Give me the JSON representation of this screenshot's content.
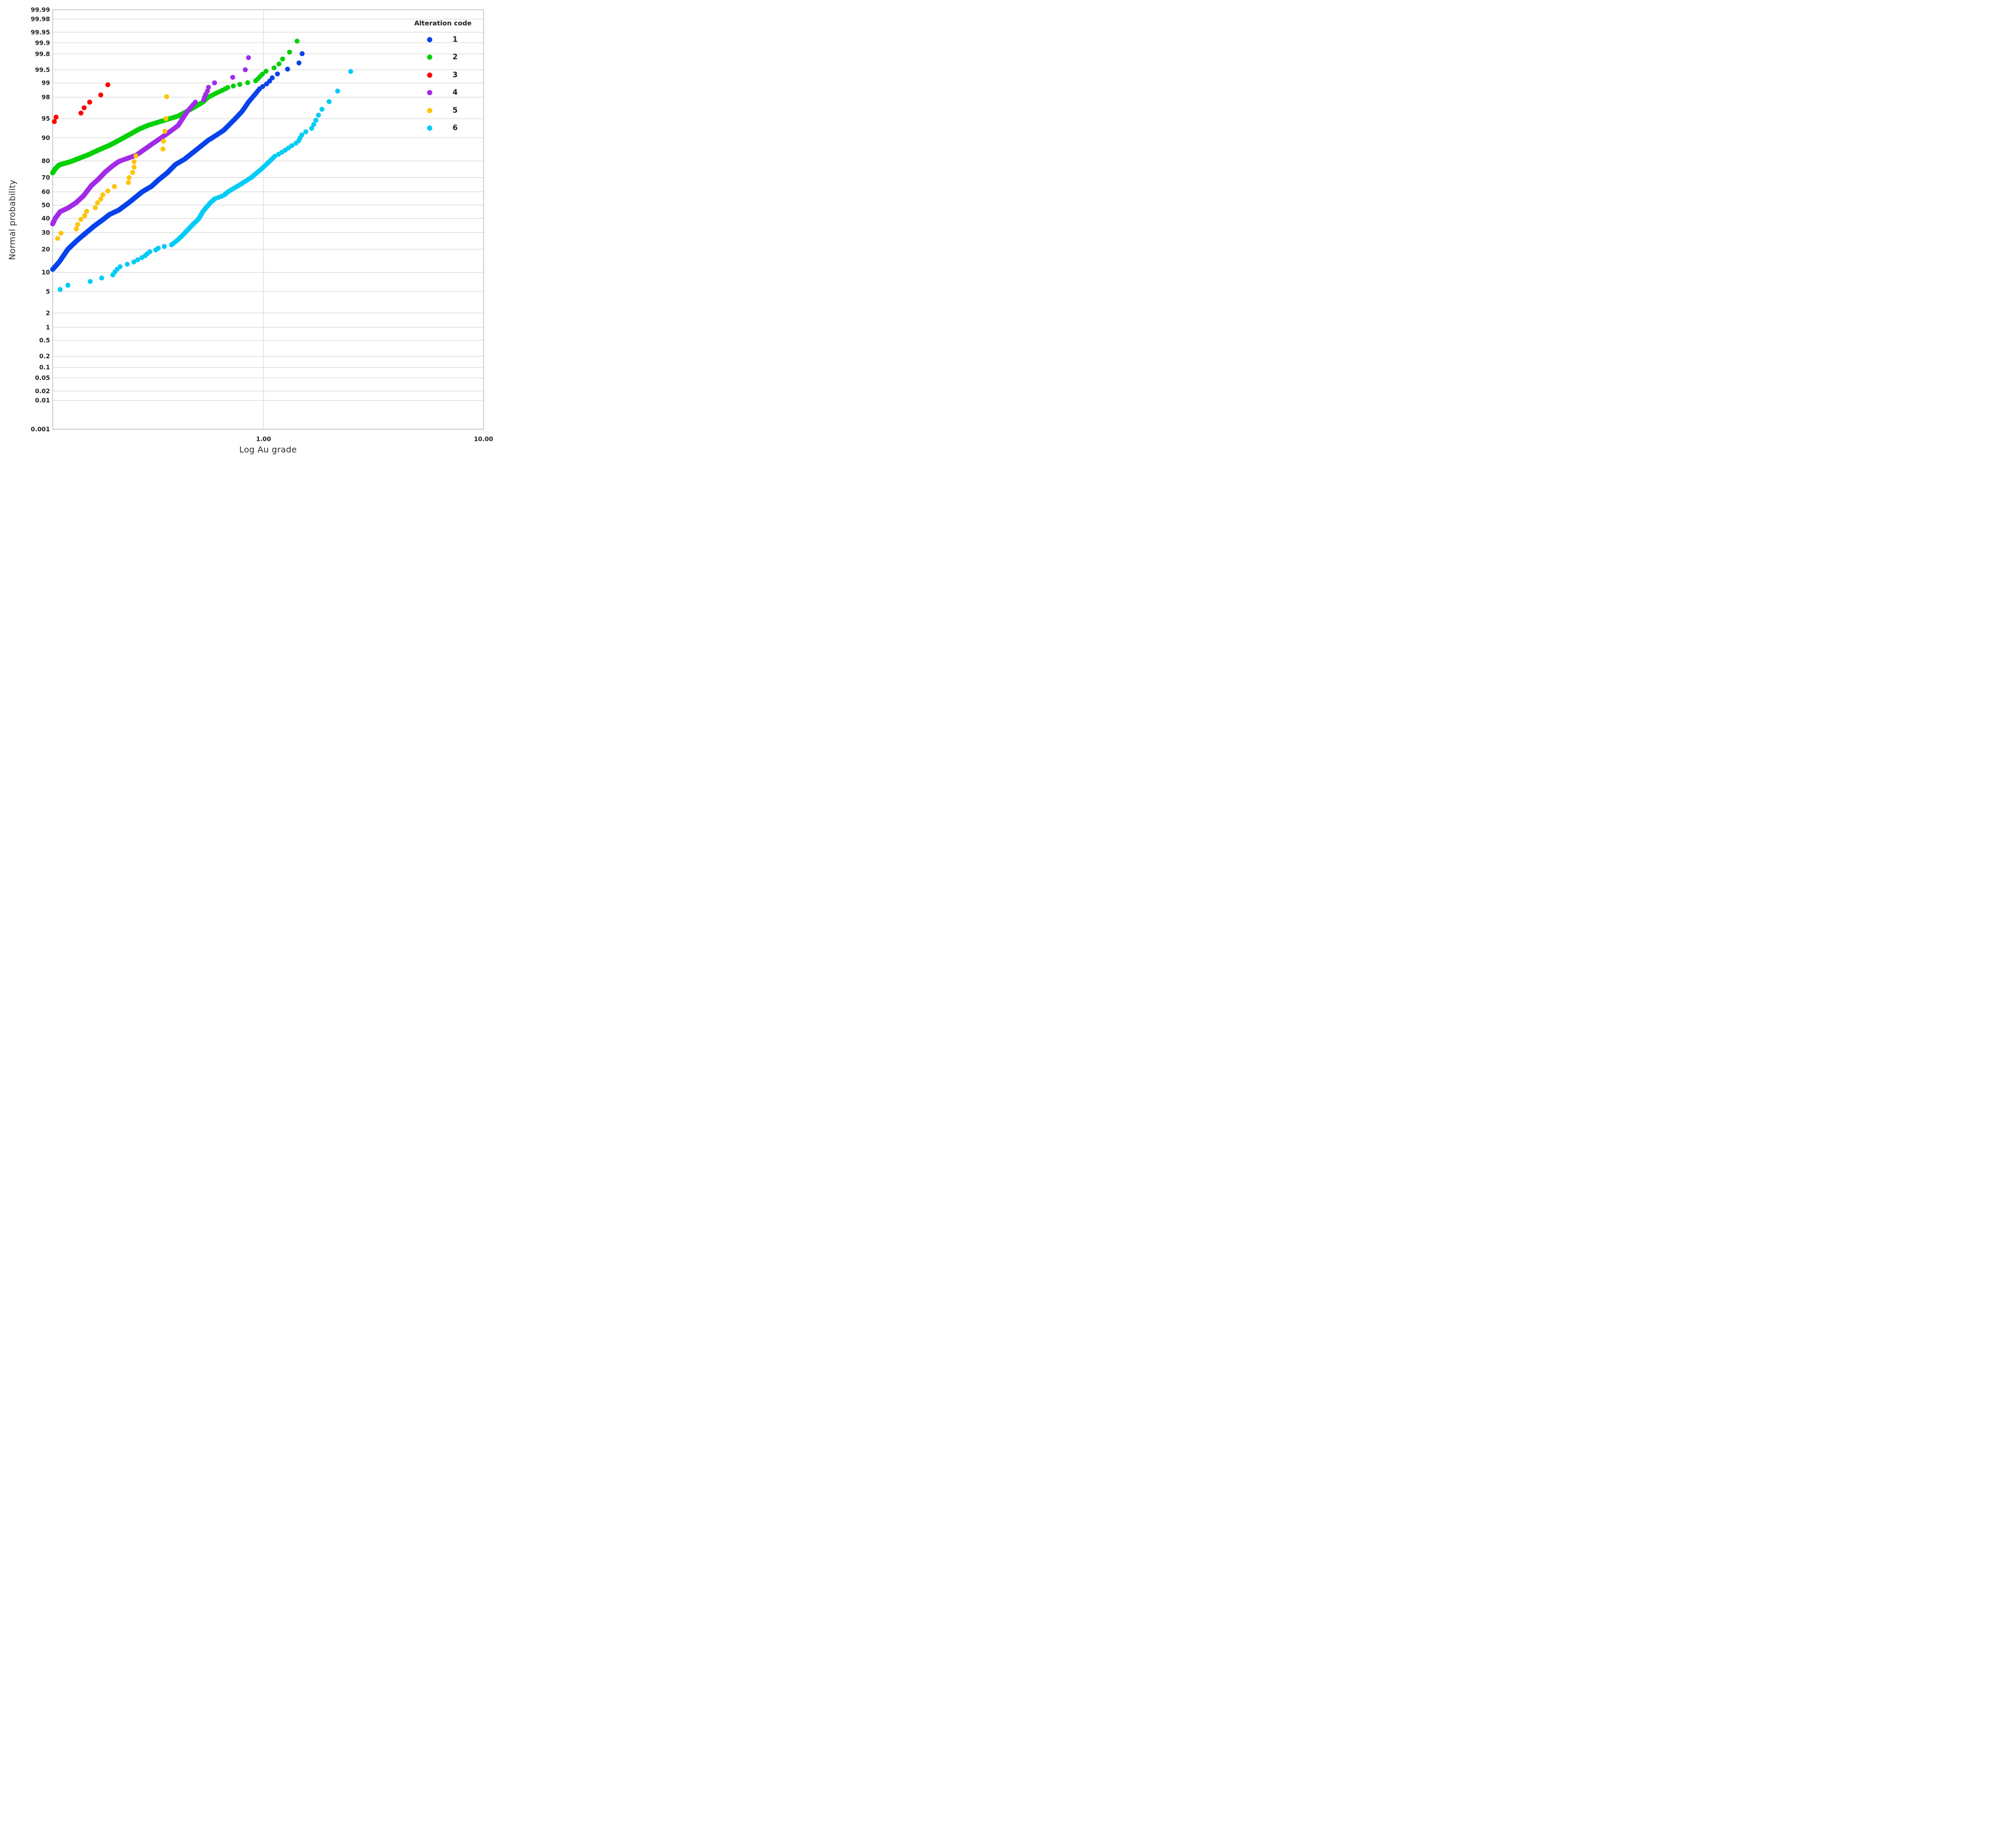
{
  "chart_data": {
    "type": "scatter",
    "title": "",
    "xlabel": "Log Au grade",
    "ylabel": "Normal probability",
    "grid": true,
    "x_axis": {
      "scale": "log10",
      "min": 0.11,
      "max": 10,
      "ticks": [
        {
          "value": 1.0,
          "label": "1.00"
        },
        {
          "value": 10.0,
          "label": "10.00"
        }
      ]
    },
    "y_axis": {
      "scale": "normal-probability-percent",
      "min_pct": 0.001,
      "max_pct": 99.99,
      "ticks": [
        {
          "pct": 99.99,
          "label": "99.99"
        },
        {
          "pct": 99.98,
          "label": "99.98"
        },
        {
          "pct": 99.95,
          "label": "99.95"
        },
        {
          "pct": 99.9,
          "label": "99.9"
        },
        {
          "pct": 99.8,
          "label": "99.8"
        },
        {
          "pct": 99.5,
          "label": "99.5"
        },
        {
          "pct": 99,
          "label": "99"
        },
        {
          "pct": 98,
          "label": "98"
        },
        {
          "pct": 95,
          "label": "95"
        },
        {
          "pct": 90,
          "label": "90"
        },
        {
          "pct": 80,
          "label": "80"
        },
        {
          "pct": 70,
          "label": "70"
        },
        {
          "pct": 60,
          "label": "60"
        },
        {
          "pct": 50,
          "label": "50"
        },
        {
          "pct": 40,
          "label": "40"
        },
        {
          "pct": 30,
          "label": "30"
        },
        {
          "pct": 20,
          "label": "20"
        },
        {
          "pct": 10,
          "label": "10"
        },
        {
          "pct": 5,
          "label": "5"
        },
        {
          "pct": 2,
          "label": "2"
        },
        {
          "pct": 1,
          "label": "1"
        },
        {
          "pct": 0.5,
          "label": "0.5"
        },
        {
          "pct": 0.2,
          "label": "0.2"
        },
        {
          "pct": 0.1,
          "label": "0.1"
        },
        {
          "pct": 0.05,
          "label": "0.05"
        },
        {
          "pct": 0.02,
          "label": "0.02"
        },
        {
          "pct": 0.01,
          "label": "0.01"
        },
        {
          "pct": 0.001,
          "label": "0.001"
        }
      ]
    },
    "legend": {
      "title": "Alteration code",
      "position": "top-right"
    },
    "series": [
      {
        "name": "1",
        "color": "#0842EB",
        "mode": "dense-chain",
        "p_min": 11.0,
        "p_max": 99.91,
        "p_step": 0.143,
        "points": [
          [
            0.11,
            11
          ],
          [
            0.118,
            14
          ],
          [
            0.129,
            20
          ],
          [
            0.142,
            25
          ],
          [
            0.155,
            29.5
          ],
          [
            0.17,
            34.5
          ],
          [
            0.186,
            39
          ],
          [
            0.2,
            43
          ],
          [
            0.22,
            46.2
          ],
          [
            0.245,
            52
          ],
          [
            0.281,
            60
          ],
          [
            0.31,
            64
          ],
          [
            0.333,
            68.4
          ],
          [
            0.365,
            73
          ],
          [
            0.398,
            78
          ],
          [
            0.438,
            80.9
          ],
          [
            0.49,
            85
          ],
          [
            0.56,
            89.1
          ],
          [
            0.6,
            90.5
          ],
          [
            0.66,
            92.3
          ],
          [
            0.74,
            94.9
          ],
          [
            0.8,
            96.3
          ],
          [
            0.86,
            97.6
          ],
          [
            0.88,
            97.85
          ],
          [
            0.966,
            98.7
          ],
          [
            1.05,
            99.0
          ],
          [
            1.1,
            99.25
          ],
          [
            1.17,
            99.4
          ],
          [
            1.44,
            99.63
          ],
          [
            1.49,
            99.77
          ],
          [
            1.54,
            99.91
          ]
        ]
      },
      {
        "name": "2",
        "color": "#06D006",
        "mode": "dense-chain",
        "p_min": 73.0,
        "p_max": 99.94,
        "p_step": 0.09,
        "points": [
          [
            0.11,
            73
          ],
          [
            0.113,
            75.5
          ],
          [
            0.118,
            77.8
          ],
          [
            0.132,
            79.5
          ],
          [
            0.159,
            83
          ],
          [
            0.18,
            85.5
          ],
          [
            0.199,
            87.2
          ],
          [
            0.22,
            89.1
          ],
          [
            0.25,
            91.3
          ],
          [
            0.27,
            92.5
          ],
          [
            0.3,
            93.6
          ],
          [
            0.35,
            94.6
          ],
          [
            0.41,
            95.5
          ],
          [
            0.48,
            96.8
          ],
          [
            0.53,
            97.5
          ],
          [
            0.56,
            98.0
          ],
          [
            0.61,
            98.35
          ],
          [
            0.66,
            98.6
          ],
          [
            0.7,
            98.8
          ],
          [
            0.77,
            98.87
          ],
          [
            0.79,
            98.97
          ],
          [
            0.91,
            99.05
          ],
          [
            0.96,
            99.26
          ],
          [
            1.01,
            99.44
          ],
          [
            1.14,
            99.57
          ],
          [
            1.2,
            99.68
          ],
          [
            1.24,
            99.77
          ],
          [
            1.37,
            99.85
          ],
          [
            1.46,
            99.94
          ]
        ]
      },
      {
        "name": "3",
        "color": "#FF0000",
        "mode": "discrete",
        "points": [
          [
            0.112,
            94.4
          ],
          [
            0.114,
            95.3
          ],
          [
            0.148,
            96.0
          ],
          [
            0.153,
            96.8
          ],
          [
            0.162,
            97.5
          ],
          [
            0.182,
            98.2
          ],
          [
            0.196,
            98.9
          ]
        ]
      },
      {
        "name": "4",
        "color": "#A22BE8",
        "mode": "dense-chain",
        "p_min": 36.0,
        "p_max": 99.85,
        "p_step": 0.25,
        "points": [
          [
            0.11,
            36
          ],
          [
            0.113,
            40
          ],
          [
            0.119,
            45
          ],
          [
            0.13,
            48
          ],
          [
            0.141,
            52
          ],
          [
            0.152,
            57
          ],
          [
            0.165,
            64.5
          ],
          [
            0.178,
            69
          ],
          [
            0.191,
            73.6
          ],
          [
            0.205,
            77
          ],
          [
            0.22,
            79.7
          ],
          [
            0.264,
            82.9
          ],
          [
            0.311,
            87.7
          ],
          [
            0.363,
            91.2
          ],
          [
            0.409,
            93.5
          ],
          [
            0.45,
            96.25
          ],
          [
            0.49,
            97.5
          ],
          [
            0.534,
            97.7
          ],
          [
            0.541,
            98.1
          ],
          [
            0.551,
            98.4
          ],
          [
            0.561,
            98.6
          ],
          [
            0.563,
            98.85
          ],
          [
            0.627,
            99.1
          ],
          [
            0.81,
            99.35
          ],
          [
            0.84,
            99.6
          ],
          [
            0.87,
            99.85
          ]
        ]
      },
      {
        "name": "5",
        "color": "#FFC408",
        "mode": "discrete",
        "points": [
          [
            0.116,
            26.3
          ],
          [
            0.12,
            29.6
          ],
          [
            0.141,
            32.5
          ],
          [
            0.143,
            35.7
          ],
          [
            0.148,
            39.3
          ],
          [
            0.154,
            42.0
          ],
          [
            0.157,
            45.3
          ],
          [
            0.172,
            48.0
          ],
          [
            0.176,
            51.7
          ],
          [
            0.182,
            54.5
          ],
          [
            0.186,
            57.7
          ],
          [
            0.196,
            60.6
          ],
          [
            0.21,
            63.8
          ],
          [
            0.243,
            66.6
          ],
          [
            0.245,
            69.9
          ],
          [
            0.254,
            73.3
          ],
          [
            0.258,
            76.5
          ],
          [
            0.258,
            79.6
          ],
          [
            0.263,
            82.6
          ],
          [
            0.349,
            85.7
          ],
          [
            0.351,
            88.8
          ],
          [
            0.356,
            92.0
          ],
          [
            0.36,
            95.0
          ],
          [
            0.363,
            98.05
          ]
        ]
      },
      {
        "name": "6",
        "color": "#00CCF5",
        "mode": "dense-chain",
        "p_min": 5.4,
        "p_max": 99.45,
        "p_step": 0.95,
        "points": [
          [
            0.119,
            5.4
          ],
          [
            0.127,
            6.3
          ],
          [
            0.158,
            7.0
          ],
          [
            0.168,
            7.6
          ],
          [
            0.185,
            8.3
          ],
          [
            0.206,
            9.0
          ],
          [
            0.208,
            9.7
          ],
          [
            0.215,
            10.7
          ],
          [
            0.218,
            11.7
          ],
          [
            0.232,
            12.7
          ],
          [
            0.251,
            13.4
          ],
          [
            0.268,
            14.9
          ],
          [
            0.288,
            16.5
          ],
          [
            0.298,
            18.0
          ],
          [
            0.305,
            18.8
          ],
          [
            0.327,
            19.8
          ],
          [
            0.335,
            21.0
          ],
          [
            0.359,
            21.7
          ],
          [
            0.381,
            22.4
          ],
          [
            0.4,
            24.5
          ],
          [
            0.42,
            27
          ],
          [
            0.44,
            30
          ],
          [
            0.46,
            33
          ],
          [
            0.48,
            36
          ],
          [
            0.506,
            39.4
          ],
          [
            0.53,
            45
          ],
          [
            0.55,
            48.3
          ],
          [
            0.575,
            52
          ],
          [
            0.6,
            54.7
          ],
          [
            0.63,
            56
          ],
          [
            0.66,
            57.3
          ],
          [
            0.69,
            60
          ],
          [
            0.78,
            65
          ],
          [
            0.88,
            70
          ],
          [
            0.97,
            75
          ],
          [
            1.05,
            79
          ],
          [
            1.13,
            82.6
          ],
          [
            1.175,
            83.4
          ],
          [
            1.26,
            85.3
          ],
          [
            1.34,
            87
          ],
          [
            1.44,
            88.6
          ],
          [
            1.45,
            89.3
          ],
          [
            1.51,
            91.5
          ],
          [
            1.65,
            92.5
          ],
          [
            1.66,
            93.2
          ],
          [
            1.7,
            93.9
          ],
          [
            1.73,
            94.7
          ],
          [
            1.76,
            95.4
          ],
          [
            1.81,
            96.1
          ],
          [
            1.85,
            96.7
          ],
          [
            2.08,
            98.0
          ],
          [
            2.49,
            99.45
          ]
        ]
      }
    ],
    "style": {
      "dot_radius": 4.7,
      "grid_color": "#D3D3D3",
      "border_color": "#C8C8C8",
      "tick_label_color": "#1f1f1f",
      "background": "#ffffff"
    }
  }
}
